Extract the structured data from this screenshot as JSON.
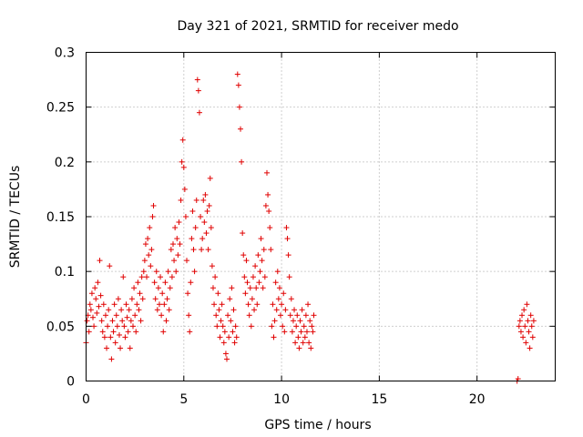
{
  "chart_data": {
    "type": "scatter",
    "title": "Day 321 of 2021, SRMTID for receiver medo",
    "xlabel": "GPS time / hours",
    "ylabel": "SRMTID / TECUs",
    "xlim": [
      0,
      24
    ],
    "ylim": [
      0,
      0.3
    ],
    "xticks": [
      0,
      5,
      10,
      15,
      20
    ],
    "xtick_labels": [
      "0",
      "5",
      "10",
      "15",
      "20"
    ],
    "yticks": [
      0,
      0.05,
      0.1,
      0.15,
      0.2,
      0.25,
      0.3
    ],
    "ytick_labels": [
      "0",
      "0.05",
      "0.1",
      "0.15",
      "0.2",
      "0.25",
      "0.3"
    ],
    "grid": true,
    "marker": "plus",
    "color": "#e00000",
    "series": [
      {
        "points": [
          [
            0.0,
            0.035
          ],
          [
            0.05,
            0.055
          ],
          [
            0.1,
            0.06
          ],
          [
            0.15,
            0.045
          ],
          [
            0.2,
            0.07
          ],
          [
            0.25,
            0.065
          ],
          [
            0.3,
            0.08
          ],
          [
            0.35,
            0.058
          ],
          [
            0.4,
            0.05
          ],
          [
            0.45,
            0.085
          ],
          [
            0.5,
            0.075
          ],
          [
            0.55,
            0.062
          ],
          [
            0.6,
            0.09
          ],
          [
            0.65,
            0.068
          ],
          [
            0.7,
            0.11
          ],
          [
            0.75,
            0.078
          ],
          [
            0.8,
            0.055
          ],
          [
            0.85,
            0.045
          ],
          [
            0.9,
            0.07
          ],
          [
            0.95,
            0.04
          ],
          [
            1.0,
            0.06
          ],
          [
            1.05,
            0.03
          ],
          [
            1.1,
            0.05
          ],
          [
            1.15,
            0.065
          ],
          [
            1.2,
            0.105
          ],
          [
            1.25,
            0.04
          ],
          [
            1.3,
            0.02
          ],
          [
            1.35,
            0.055
          ],
          [
            1.4,
            0.045
          ],
          [
            1.45,
            0.07
          ],
          [
            1.5,
            0.035
          ],
          [
            1.55,
            0.06
          ],
          [
            1.6,
            0.05
          ],
          [
            1.65,
            0.075
          ],
          [
            1.7,
            0.042
          ],
          [
            1.75,
            0.03
          ],
          [
            1.8,
            0.065
          ],
          [
            1.85,
            0.055
          ],
          [
            1.9,
            0.095
          ],
          [
            1.95,
            0.05
          ],
          [
            2.0,
            0.04
          ],
          [
            2.05,
            0.07
          ],
          [
            2.1,
            0.058
          ],
          [
            2.15,
            0.045
          ],
          [
            2.2,
            0.065
          ],
          [
            2.25,
            0.03
          ],
          [
            2.3,
            0.055
          ],
          [
            2.35,
            0.075
          ],
          [
            2.4,
            0.05
          ],
          [
            2.45,
            0.085
          ],
          [
            2.5,
            0.06
          ],
          [
            2.55,
            0.045
          ],
          [
            2.6,
            0.07
          ],
          [
            2.65,
            0.09
          ],
          [
            2.7,
            0.065
          ],
          [
            2.75,
            0.08
          ],
          [
            2.8,
            0.055
          ],
          [
            2.85,
            0.095
          ],
          [
            2.9,
            0.075
          ],
          [
            2.95,
            0.1
          ],
          [
            3.0,
            0.11
          ],
          [
            3.05,
            0.125
          ],
          [
            3.1,
            0.095
          ],
          [
            3.15,
            0.13
          ],
          [
            3.2,
            0.115
          ],
          [
            3.25,
            0.14
          ],
          [
            3.3,
            0.105
          ],
          [
            3.35,
            0.12
          ],
          [
            3.4,
            0.15
          ],
          [
            3.45,
            0.16
          ],
          [
            3.5,
            0.09
          ],
          [
            3.55,
            0.075
          ],
          [
            3.6,
            0.1
          ],
          [
            3.65,
            0.065
          ],
          [
            3.7,
            0.085
          ],
          [
            3.75,
            0.07
          ],
          [
            3.8,
            0.095
          ],
          [
            3.85,
            0.06
          ],
          [
            3.9,
            0.08
          ],
          [
            3.95,
            0.045
          ],
          [
            4.0,
            0.07
          ],
          [
            4.05,
            0.09
          ],
          [
            4.1,
            0.055
          ],
          [
            4.15,
            0.075
          ],
          [
            4.2,
            0.1
          ],
          [
            4.25,
            0.065
          ],
          [
            4.3,
            0.085
          ],
          [
            4.35,
            0.12
          ],
          [
            4.4,
            0.095
          ],
          [
            4.45,
            0.125
          ],
          [
            4.5,
            0.11
          ],
          [
            4.55,
            0.14
          ],
          [
            4.6,
            0.1
          ],
          [
            4.65,
            0.13
          ],
          [
            4.7,
            0.115
          ],
          [
            4.75,
            0.145
          ],
          [
            4.8,
            0.125
          ],
          [
            4.85,
            0.165
          ],
          [
            4.9,
            0.2
          ],
          [
            4.95,
            0.22
          ],
          [
            5.0,
            0.195
          ],
          [
            5.05,
            0.175
          ],
          [
            5.1,
            0.15
          ],
          [
            5.15,
            0.11
          ],
          [
            5.2,
            0.08
          ],
          [
            5.25,
            0.06
          ],
          [
            5.3,
            0.045
          ],
          [
            5.35,
            0.09
          ],
          [
            5.4,
            0.13
          ],
          [
            5.45,
            0.155
          ],
          [
            5.5,
            0.12
          ],
          [
            5.55,
            0.1
          ],
          [
            5.6,
            0.14
          ],
          [
            5.65,
            0.165
          ],
          [
            5.7,
            0.275
          ],
          [
            5.75,
            0.265
          ],
          [
            5.8,
            0.245
          ],
          [
            5.85,
            0.15
          ],
          [
            5.9,
            0.12
          ],
          [
            5.95,
            0.13
          ],
          [
            6.0,
            0.165
          ],
          [
            6.05,
            0.145
          ],
          [
            6.1,
            0.17
          ],
          [
            6.15,
            0.135
          ],
          [
            6.2,
            0.155
          ],
          [
            6.25,
            0.12
          ],
          [
            6.3,
            0.16
          ],
          [
            6.35,
            0.185
          ],
          [
            6.4,
            0.14
          ],
          [
            6.45,
            0.105
          ],
          [
            6.5,
            0.085
          ],
          [
            6.55,
            0.07
          ],
          [
            6.6,
            0.095
          ],
          [
            6.65,
            0.06
          ],
          [
            6.7,
            0.05
          ],
          [
            6.75,
            0.08
          ],
          [
            6.8,
            0.065
          ],
          [
            6.85,
            0.04
          ],
          [
            6.9,
            0.055
          ],
          [
            6.95,
            0.07
          ],
          [
            7.0,
            0.05
          ],
          [
            7.05,
            0.035
          ],
          [
            7.1,
            0.045
          ],
          [
            7.15,
            0.025
          ],
          [
            7.2,
            0.02
          ],
          [
            7.25,
            0.06
          ],
          [
            7.3,
            0.04
          ],
          [
            7.35,
            0.075
          ],
          [
            7.4,
            0.055
          ],
          [
            7.45,
            0.085
          ],
          [
            7.5,
            0.045
          ],
          [
            7.55,
            0.065
          ],
          [
            7.6,
            0.035
          ],
          [
            7.65,
            0.05
          ],
          [
            7.7,
            0.04
          ],
          [
            7.75,
            0.28
          ],
          [
            7.8,
            0.27
          ],
          [
            7.85,
            0.25
          ],
          [
            7.9,
            0.23
          ],
          [
            7.95,
            0.2
          ],
          [
            8.0,
            0.135
          ],
          [
            8.05,
            0.115
          ],
          [
            8.1,
            0.095
          ],
          [
            8.15,
            0.08
          ],
          [
            8.2,
            0.11
          ],
          [
            8.25,
            0.09
          ],
          [
            8.3,
            0.07
          ],
          [
            8.35,
            0.06
          ],
          [
            8.4,
            0.085
          ],
          [
            8.45,
            0.05
          ],
          [
            8.5,
            0.075
          ],
          [
            8.55,
            0.095
          ],
          [
            8.6,
            0.065
          ],
          [
            8.65,
            0.105
          ],
          [
            8.7,
            0.085
          ],
          [
            8.75,
            0.07
          ],
          [
            8.8,
            0.115
          ],
          [
            8.85,
            0.09
          ],
          [
            8.9,
            0.1
          ],
          [
            8.95,
            0.13
          ],
          [
            9.0,
            0.11
          ],
          [
            9.05,
            0.085
          ],
          [
            9.1,
            0.12
          ],
          [
            9.15,
            0.095
          ],
          [
            9.2,
            0.16
          ],
          [
            9.25,
            0.19
          ],
          [
            9.3,
            0.17
          ],
          [
            9.35,
            0.155
          ],
          [
            9.4,
            0.14
          ],
          [
            9.45,
            0.12
          ],
          [
            9.5,
            0.05
          ],
          [
            9.55,
            0.07
          ],
          [
            9.6,
            0.04
          ],
          [
            9.65,
            0.055
          ],
          [
            9.7,
            0.09
          ],
          [
            9.75,
            0.065
          ],
          [
            9.8,
            0.1
          ],
          [
            9.85,
            0.075
          ],
          [
            9.9,
            0.085
          ],
          [
            9.95,
            0.06
          ],
          [
            10.0,
            0.07
          ],
          [
            10.05,
            0.05
          ],
          [
            10.1,
            0.08
          ],
          [
            10.15,
            0.045
          ],
          [
            10.2,
            0.065
          ],
          [
            10.25,
            0.14
          ],
          [
            10.3,
            0.13
          ],
          [
            10.35,
            0.115
          ],
          [
            10.4,
            0.095
          ],
          [
            10.45,
            0.06
          ],
          [
            10.5,
            0.075
          ],
          [
            10.55,
            0.045
          ],
          [
            10.6,
            0.055
          ],
          [
            10.65,
            0.065
          ],
          [
            10.7,
            0.035
          ],
          [
            10.75,
            0.05
          ],
          [
            10.8,
            0.06
          ],
          [
            10.85,
            0.04
          ],
          [
            10.9,
            0.03
          ],
          [
            10.95,
            0.055
          ],
          [
            11.0,
            0.045
          ],
          [
            11.05,
            0.065
          ],
          [
            11.1,
            0.035
          ],
          [
            11.15,
            0.05
          ],
          [
            11.2,
            0.04
          ],
          [
            11.25,
            0.06
          ],
          [
            11.3,
            0.045
          ],
          [
            11.35,
            0.07
          ],
          [
            11.4,
            0.035
          ],
          [
            11.45,
            0.055
          ],
          [
            11.5,
            0.03
          ],
          [
            11.55,
            0.05
          ],
          [
            11.6,
            0.045
          ],
          [
            11.65,
            0.06
          ],
          [
            22.05,
            0.0
          ],
          [
            22.1,
            0.002
          ],
          [
            22.15,
            0.05
          ],
          [
            22.2,
            0.055
          ],
          [
            22.25,
            0.045
          ],
          [
            22.3,
            0.06
          ],
          [
            22.35,
            0.04
          ],
          [
            22.4,
            0.065
          ],
          [
            22.45,
            0.05
          ],
          [
            22.5,
            0.035
          ],
          [
            22.55,
            0.07
          ],
          [
            22.6,
            0.055
          ],
          [
            22.65,
            0.045
          ],
          [
            22.7,
            0.03
          ],
          [
            22.75,
            0.06
          ],
          [
            22.8,
            0.05
          ],
          [
            22.85,
            0.04
          ],
          [
            22.9,
            0.055
          ]
        ]
      }
    ]
  }
}
